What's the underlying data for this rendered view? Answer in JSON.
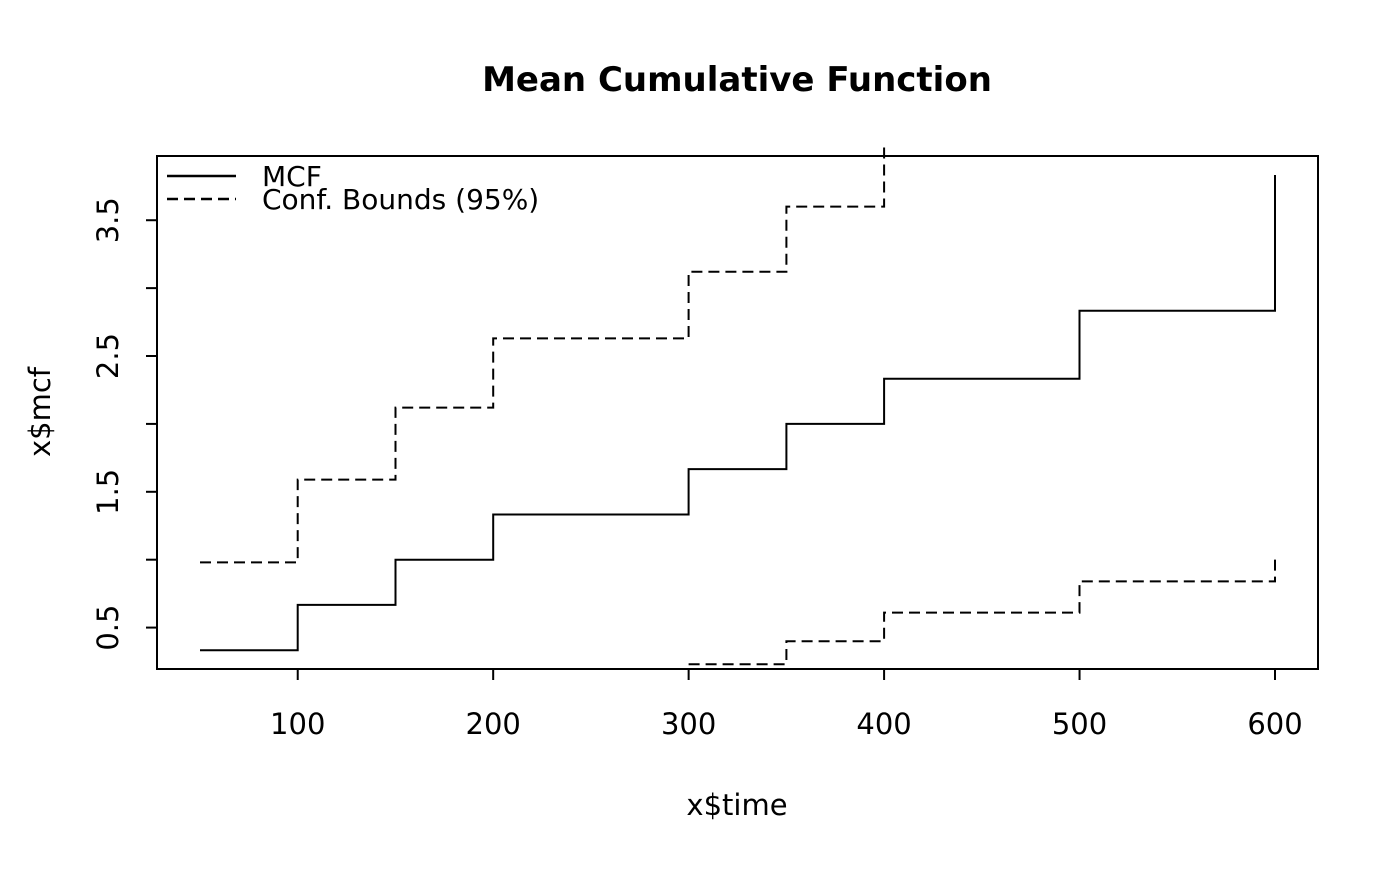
{
  "title": "Mean Cumulative Function",
  "chart_data": {
    "type": "line",
    "subtype": "step",
    "title": "Mean Cumulative Function",
    "xlabel": "x$time",
    "ylabel": "x$mcf",
    "xlim": [
      28,
      622
    ],
    "ylim": [
      0.195,
      3.973
    ],
    "x_ticks": [
      100,
      200,
      300,
      400,
      500,
      600
    ],
    "x_tick_labels": [
      "100",
      "200",
      "300",
      "400",
      "500",
      "600"
    ],
    "y_ticks": [
      0.5,
      1.0,
      1.5,
      2.0,
      2.5,
      3.0,
      3.5
    ],
    "y_tick_labels": [
      "0.5",
      "",
      "1.5",
      "",
      "2.5",
      "",
      "3.5"
    ],
    "grid": false,
    "background": "#ffffff",
    "line_color": "#000000",
    "legend_position": "top-left",
    "legend": [
      {
        "label": "MCF",
        "style": "solid"
      },
      {
        "label": "Conf. Bounds (95%)",
        "style": "dashed"
      }
    ],
    "series": [
      {
        "name": "MCF",
        "style": "solid",
        "step_points": [
          [
            50,
            0.333
          ],
          [
            100,
            0.667
          ],
          [
            150,
            1.0
          ],
          [
            200,
            1.333
          ],
          [
            300,
            1.667
          ],
          [
            350,
            2.0
          ],
          [
            400,
            2.333
          ],
          [
            500,
            2.833
          ],
          [
            600,
            3.833
          ]
        ]
      },
      {
        "name": "Conf. Bounds (95%) upper",
        "style": "dashed",
        "step_points": [
          [
            50,
            0.98
          ],
          [
            100,
            1.59
          ],
          [
            150,
            2.12
          ],
          [
            200,
            2.63
          ],
          [
            300,
            3.12
          ],
          [
            350,
            3.6
          ],
          [
            400,
            4.05
          ]
        ]
      },
      {
        "name": "Conf. Bounds (95%) lower",
        "style": "dashed",
        "step_points": [
          [
            300,
            0.23
          ],
          [
            350,
            0.4
          ],
          [
            400,
            0.61
          ],
          [
            500,
            0.84
          ],
          [
            600,
            1.04
          ]
        ]
      }
    ]
  }
}
